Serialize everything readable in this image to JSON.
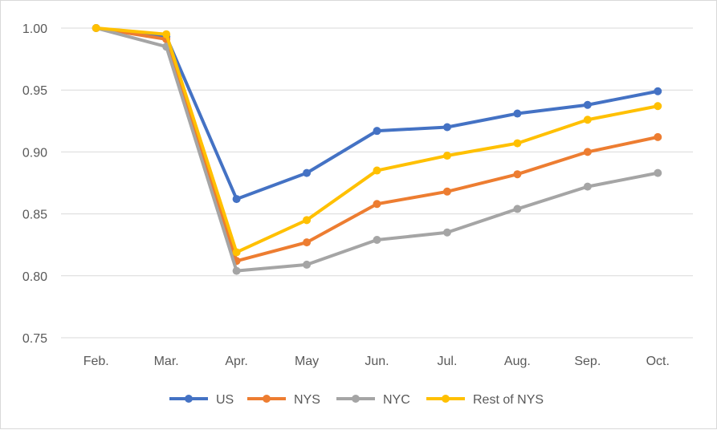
{
  "chart_data": {
    "type": "line",
    "title": "",
    "xlabel": "",
    "ylabel": "",
    "categories": [
      "Feb.",
      "Mar.",
      "Apr.",
      "May",
      "Jun.",
      "Jul.",
      "Aug.",
      "Sep.",
      "Oct."
    ],
    "ylim": [
      0.75,
      1.0
    ],
    "yticks": [
      "0.75",
      "0.80",
      "0.85",
      "0.90",
      "0.95",
      "1.00"
    ],
    "grid": true,
    "legend_position": "bottom",
    "series": [
      {
        "name": "US",
        "color": "#4472c4",
        "values": [
          1.0,
          0.993,
          0.862,
          0.883,
          0.917,
          0.92,
          0.931,
          0.938,
          0.949
        ]
      },
      {
        "name": "NYS",
        "color": "#ed7d31",
        "values": [
          1.0,
          0.991,
          0.812,
          0.827,
          0.858,
          0.868,
          0.882,
          0.9,
          0.912
        ]
      },
      {
        "name": "NYC",
        "color": "#a5a5a5",
        "values": [
          1.0,
          0.985,
          0.804,
          0.809,
          0.829,
          0.835,
          0.854,
          0.872,
          0.883
        ]
      },
      {
        "name": "Rest of NYS",
        "color": "#ffc000",
        "values": [
          1.0,
          0.995,
          0.819,
          0.845,
          0.885,
          0.897,
          0.907,
          0.926,
          0.937
        ]
      }
    ]
  }
}
